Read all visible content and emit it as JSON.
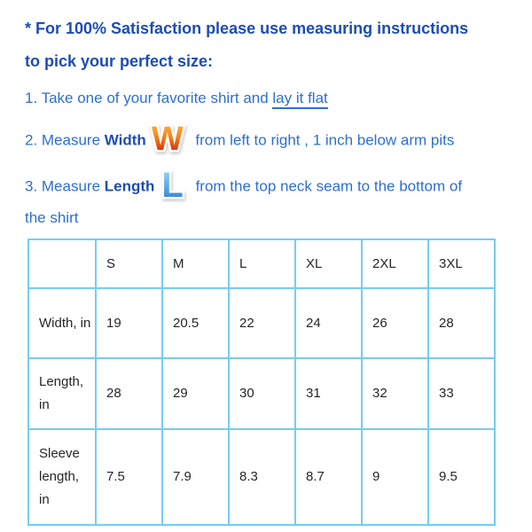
{
  "content": {
    "heading_line1": "* For 100% Satisfaction please use measuring instructions",
    "heading_line2": "to pick your perfect size:",
    "step1": {
      "text": "1. Take one of your favorite shirt and ",
      "underlined_text": "lay it flat"
    },
    "step2": {
      "prefix": "2. Measure ",
      "bold_word": "Width",
      "suffix": " from left to right , 1 inch below arm pits"
    },
    "step3": {
      "prefix": "3. Measure ",
      "bold_word": "Length",
      "suffix_line1": " from the top neck seam to the bottom of",
      "suffix_line2": "the shirt"
    }
  },
  "icons": {
    "width_letter": "W",
    "length_letter": "L"
  },
  "size_table": {
    "column_headers": [
      "",
      "S",
      "M",
      "L",
      "XL",
      "2XL",
      "3XL"
    ],
    "rows": [
      {
        "label": "Width, in",
        "values": [
          "19",
          "20.5",
          "22",
          "24",
          "26",
          "28"
        ]
      },
      {
        "label": "Length, in",
        "values": [
          "28",
          "29",
          "30",
          "31",
          "32",
          "33"
        ]
      },
      {
        "label": "Sleeve length, in",
        "values": [
          "7.5",
          "7.9",
          "8.3",
          "8.7",
          "9",
          "9.5"
        ]
      }
    ]
  },
  "colors": {
    "heading_blue": "#1d4cb5",
    "body_blue": "#2e6fd0",
    "table_border_blue": "#76ccf4",
    "table_text": "#262626",
    "w_icon_gradient_top": "#ffb844",
    "w_icon_gradient_bottom": "#b01e06",
    "l_icon_gradient_top": "#aadcf8",
    "l_icon_gradient_bottom": "#2a6fc6"
  }
}
